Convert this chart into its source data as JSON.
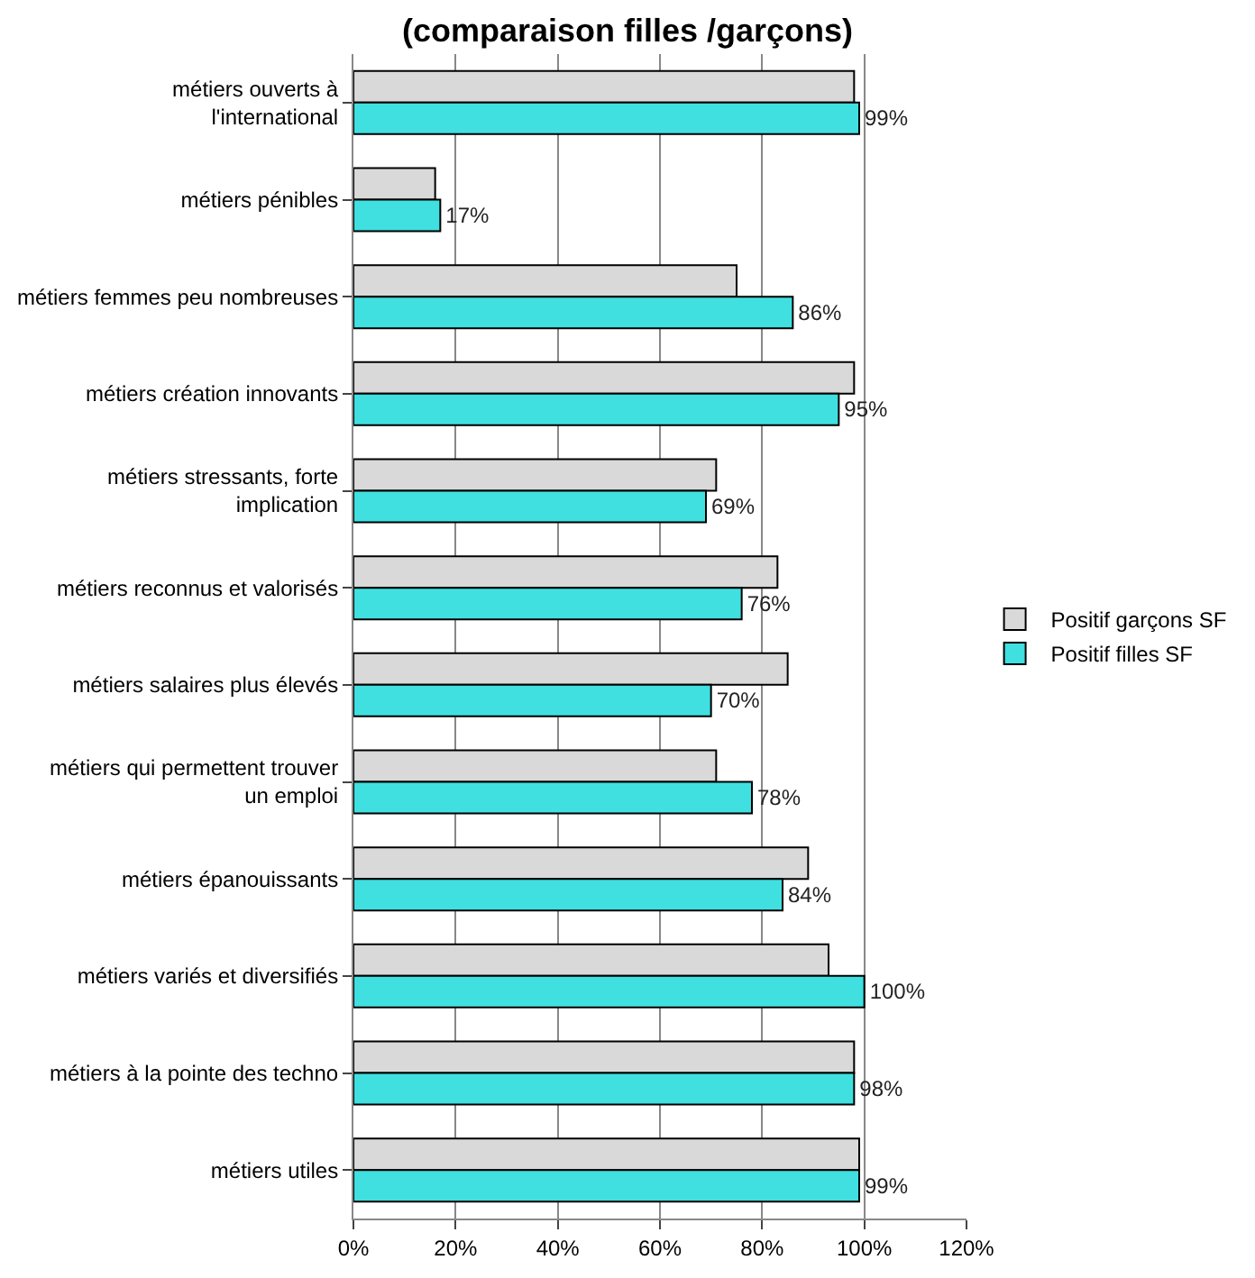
{
  "chart_data": {
    "type": "bar",
    "orientation": "horizontal",
    "title": "(comparaison filles /garçons)",
    "categories": [
      "métiers ouverts à l'international",
      "métiers pénibles",
      "métiers femmes peu nombreuses",
      "métiers création innovants",
      "métiers stressants, forte implication",
      "métiers reconnus et valorisés",
      "métiers salaires plus élevés",
      "métiers qui permettent trouver un emploi",
      "métiers épanouissants",
      "métiers variés et diversifiés",
      "métiers à la pointe des techno",
      "métiers utiles"
    ],
    "series": [
      {
        "name": "Positif garçons SF",
        "color": "#d9d9d9",
        "values": [
          98,
          16,
          75,
          98,
          71,
          83,
          85,
          71,
          89,
          93,
          98,
          99
        ]
      },
      {
        "name": "Positif filles SF",
        "color": "#40e0e0",
        "values": [
          99,
          17,
          86,
          95,
          69,
          76,
          70,
          78,
          84,
          100,
          98,
          99
        ],
        "value_labels": [
          "99%",
          "17%",
          "86%",
          "95%",
          "69%",
          "76%",
          "70%",
          "78%",
          "84%",
          "100%",
          "98%",
          "99%"
        ]
      }
    ],
    "xlim": [
      0,
      120
    ],
    "xticks": [
      {
        "value": 0,
        "label": "0%"
      },
      {
        "value": 20,
        "label": "20%"
      },
      {
        "value": 40,
        "label": "40%"
      },
      {
        "value": 60,
        "label": "60%"
      },
      {
        "value": 80,
        "label": "80%"
      },
      {
        "value": 100,
        "label": "100%"
      },
      {
        "value": 120,
        "label": "120%"
      }
    ],
    "grid": "x",
    "legend": "right"
  }
}
